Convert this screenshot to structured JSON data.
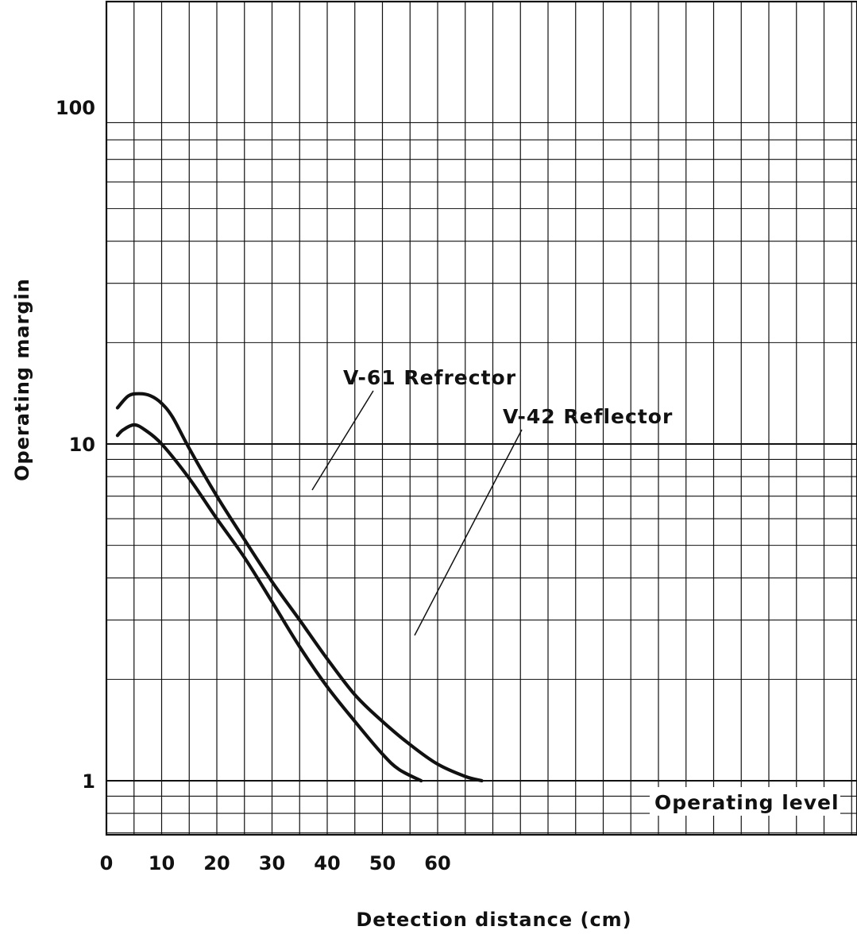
{
  "chart_data": {
    "type": "line",
    "title": "",
    "xlabel": "Detection distance (cm)",
    "ylabel": "Operating margin",
    "x_scale": "linear",
    "y_scale": "log",
    "xlim": [
      0,
      69
    ],
    "ylim": [
      0.7,
      200
    ],
    "x_ticks": [
      0,
      10,
      20,
      30,
      40,
      50,
      60
    ],
    "x_tick_labels": [
      "0",
      "10",
      "20",
      "30",
      "40",
      "50",
      "60"
    ],
    "y_ticks": [
      1,
      10,
      100
    ],
    "y_tick_labels": [
      "1",
      "10",
      "100"
    ],
    "grid": true,
    "series": [
      {
        "name": "V-61 Refrector",
        "x": [
          2,
          4,
          6,
          8,
          10,
          12,
          15,
          20,
          25,
          30,
          35,
          40,
          45,
          50,
          55,
          60,
          65,
          68
        ],
        "y": [
          12.8,
          13.9,
          14.1,
          13.9,
          13.2,
          12.0,
          9.7,
          7.0,
          5.2,
          3.9,
          3.0,
          2.3,
          1.8,
          1.5,
          1.28,
          1.12,
          1.03,
          1.0
        ]
      },
      {
        "name": "V-42 Reflector",
        "x": [
          2,
          3,
          5,
          7,
          10,
          15,
          20,
          25,
          30,
          35,
          40,
          45,
          50,
          53,
          57
        ],
        "y": [
          10.6,
          11.0,
          11.4,
          11.0,
          10.0,
          7.9,
          6.0,
          4.6,
          3.4,
          2.5,
          1.9,
          1.5,
          1.2,
          1.08,
          1.0
        ]
      }
    ],
    "annotations": [
      {
        "text": "V-61 Refrector",
        "points_to_series": "V-61 Refrector"
      },
      {
        "text": "V-42 Reflector",
        "points_to_series": "V-42 Reflector"
      },
      {
        "text": "Operating level"
      }
    ]
  }
}
